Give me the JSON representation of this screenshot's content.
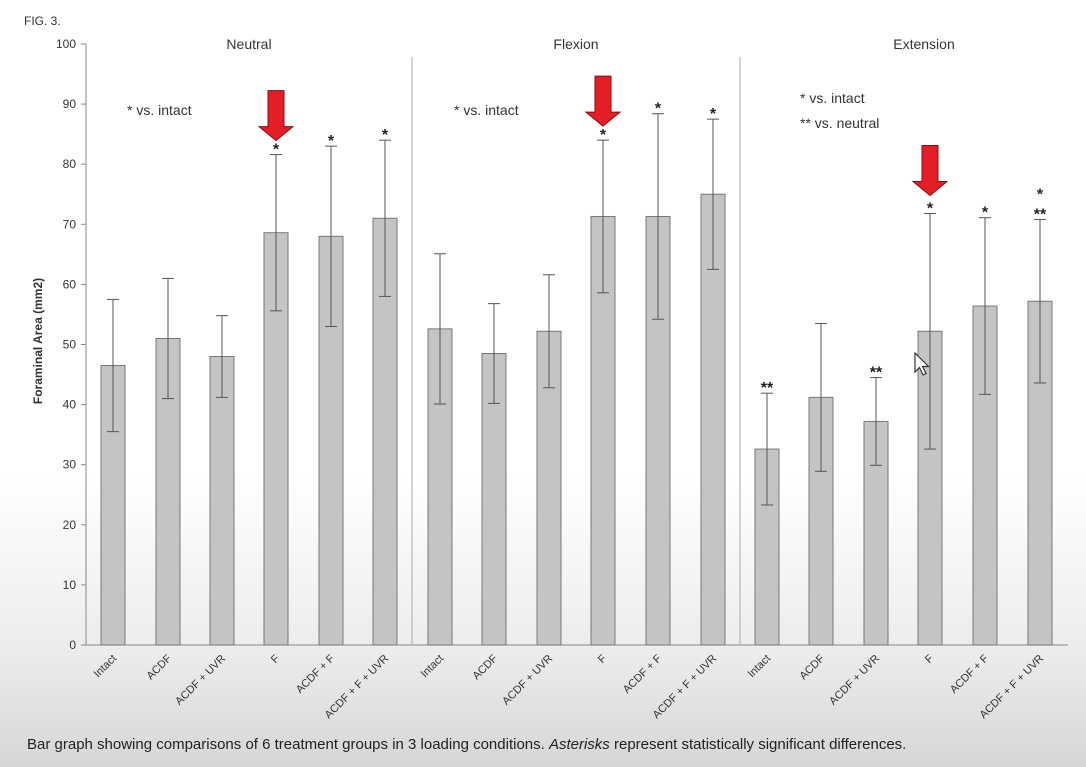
{
  "figure_label": "FIG. 3.",
  "caption": {
    "text_before": "Bar graph showing comparisons of 6 treatment groups in 3 loading conditions. ",
    "italic": "Asterisks",
    "text_after": " represent statistically significant differences."
  },
  "colors": {
    "bar_fill": "#c4c4c4",
    "bar_stroke": "#777777",
    "arrow": "#e41e26",
    "axis": "#888888"
  },
  "chart_data": {
    "type": "bar",
    "ylabel": "Foraminal Area (mm2)",
    "ylim": [
      0,
      100
    ],
    "yticks": [
      0,
      10,
      20,
      30,
      40,
      50,
      60,
      70,
      80,
      90,
      100
    ],
    "categories": [
      "Intact",
      "ACDF",
      "ACDF + UVR",
      "F",
      "ACDF + F",
      "ACDF + F + UVR"
    ],
    "panels": [
      {
        "title": "Neutral",
        "legend": [
          "* vs. intact"
        ],
        "values": [
          46.5,
          51,
          48,
          68.6,
          68,
          71
        ],
        "errors": [
          11,
          10,
          6.8,
          13,
          15,
          13
        ],
        "significance": [
          "",
          "",
          "",
          "*",
          "*",
          "*"
        ],
        "highlight_arrow": "F"
      },
      {
        "title": "Flexion",
        "legend": [
          "* vs. intact"
        ],
        "values": [
          52.6,
          48.5,
          52.2,
          71.3,
          71.3,
          75
        ],
        "errors": [
          12.5,
          8.3,
          9.4,
          12.7,
          17.1,
          12.5
        ],
        "significance": [
          "",
          "",
          "",
          "*",
          "*",
          "*"
        ],
        "highlight_arrow": "F"
      },
      {
        "title": "Extension",
        "legend": [
          "* vs. intact",
          "** vs. neutral"
        ],
        "values": [
          32.6,
          41.2,
          37.2,
          52.2,
          56.4,
          57.2
        ],
        "errors": [
          9.3,
          12.3,
          7.3,
          19.6,
          14.7,
          13.6
        ],
        "significance": [
          "**",
          "",
          "**",
          "*",
          "*",
          "*\n**"
        ],
        "highlight_arrow": "F"
      }
    ]
  }
}
